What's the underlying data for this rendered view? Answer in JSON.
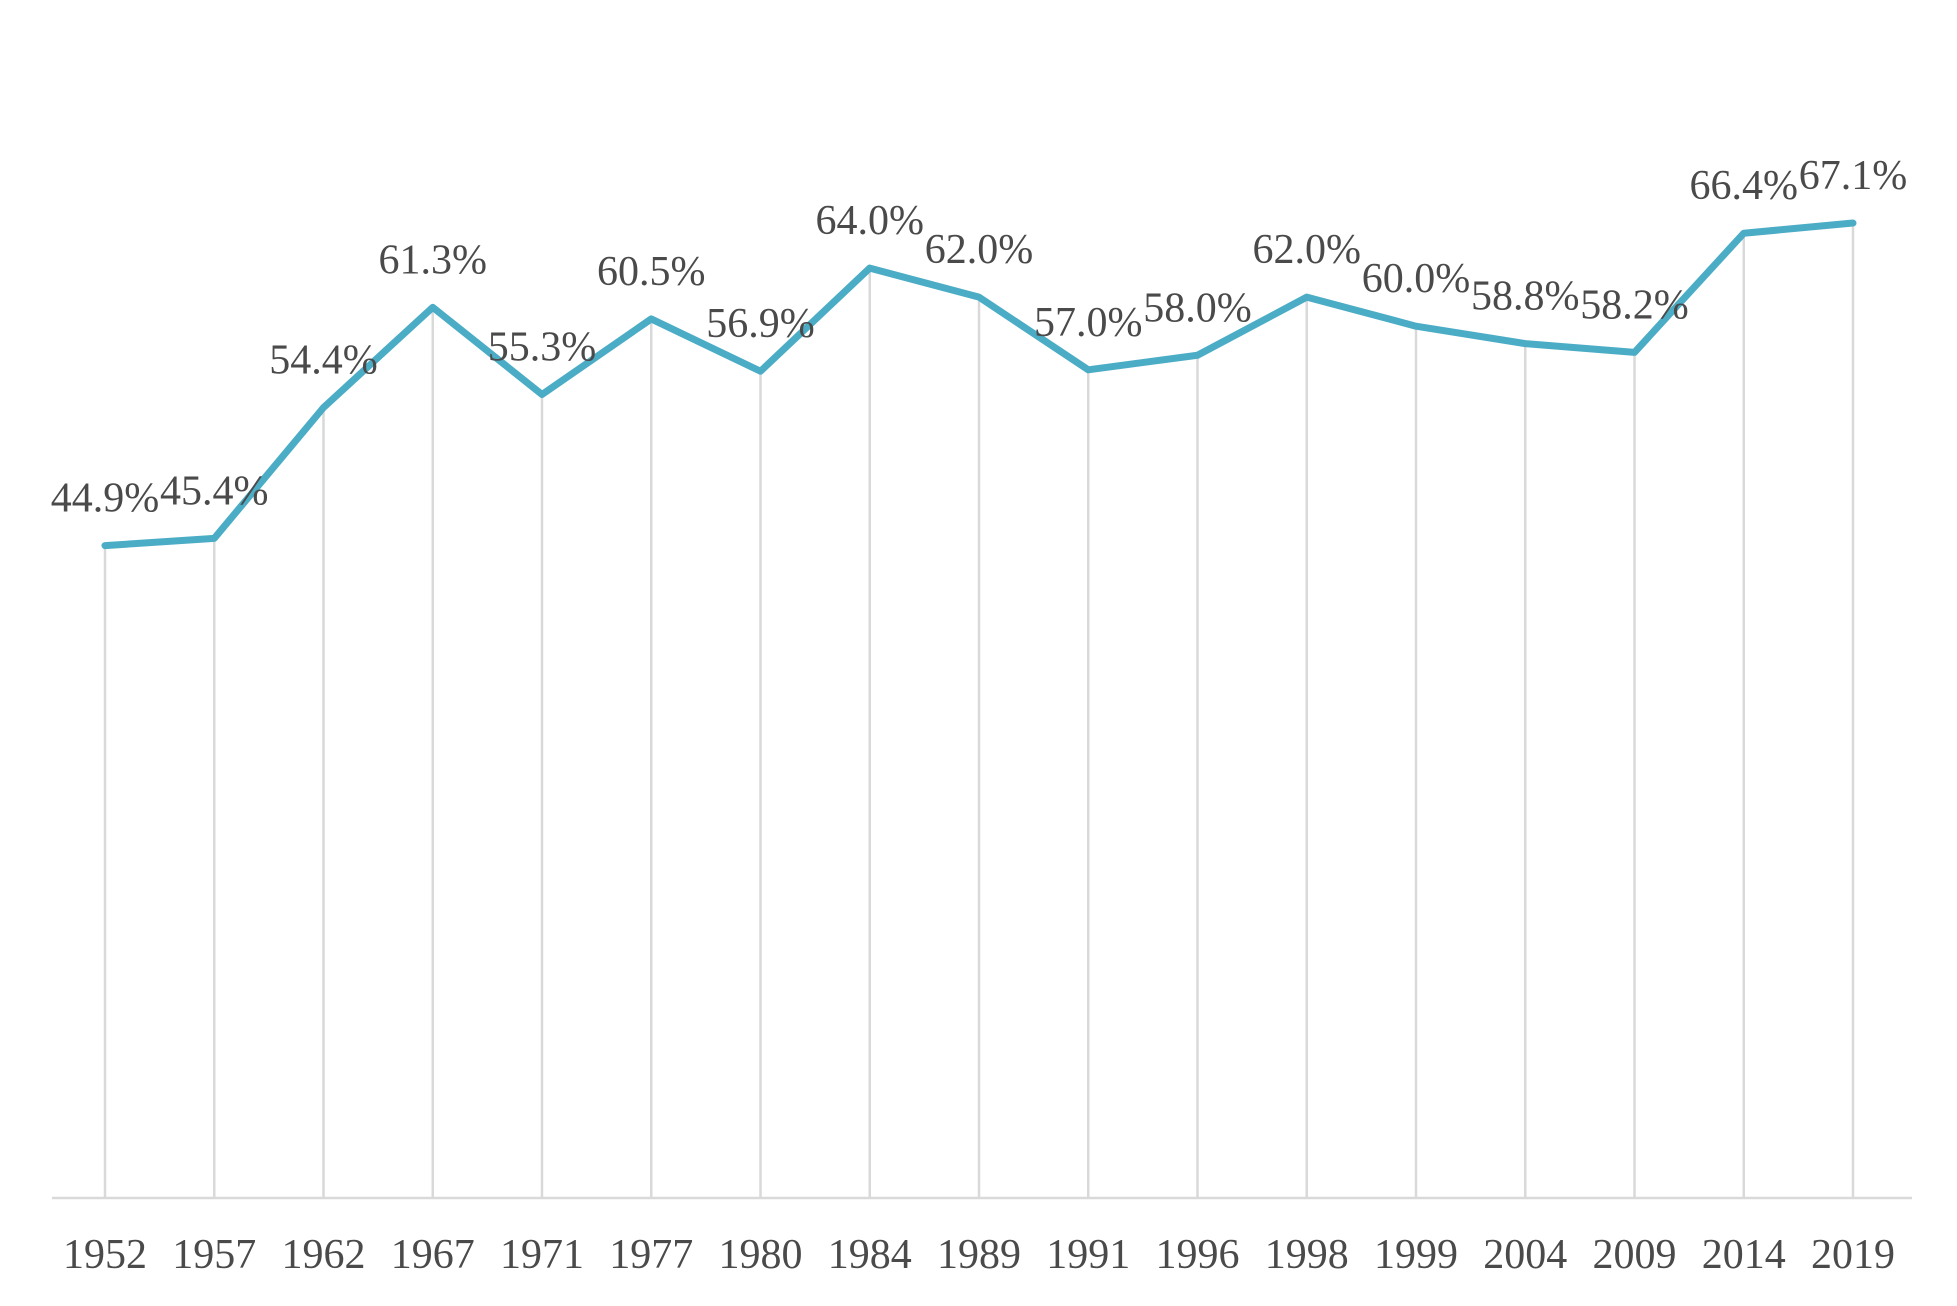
{
  "chart_data": {
    "type": "line",
    "title": "",
    "xlabel": "",
    "ylabel": "",
    "categories": [
      "1952",
      "1957",
      "1962",
      "1967",
      "1971",
      "1977",
      "1980",
      "1984",
      "1989",
      "1991",
      "1996",
      "1998",
      "1999",
      "2004",
      "2009",
      "2014",
      "2019"
    ],
    "series": [
      {
        "values": [
          44.9,
          45.4,
          54.4,
          61.3,
          55.3,
          60.5,
          56.9,
          64.0,
          62.0,
          57.0,
          58.0,
          62.0,
          60.0,
          58.8,
          58.2,
          66.4,
          67.1
        ],
        "labels": [
          "44.9%",
          "45.4%",
          "54.4%",
          "61.3%",
          "55.3%",
          "60.5%",
          "56.9%",
          "64.0%",
          "62.0%",
          "57.0%",
          "58.0%",
          "62.0%",
          "60.0%",
          "58.8%",
          "58.2%",
          "66.4%",
          "67.1%"
        ],
        "color": "#4bacc6"
      }
    ],
    "ylim": [
      0,
      80
    ],
    "grid": "vertical",
    "legend": "none"
  }
}
